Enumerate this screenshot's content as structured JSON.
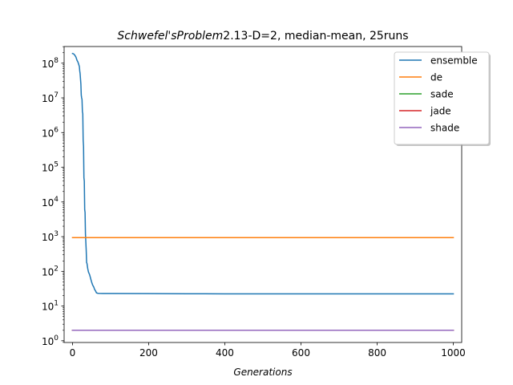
{
  "chart_data": {
    "type": "line",
    "title_italic": "Schwefel'sProblem",
    "title_rest": "2.13-D=2, median-mean, 25runs",
    "xlabel": "Generations",
    "ylabel": "",
    "xlim": [
      -22,
      1022
    ],
    "ylim_log10": [
      -0.05,
      8.48
    ],
    "yscale": "log",
    "x_ticks": [
      0,
      200,
      400,
      600,
      800,
      1000
    ],
    "x_tick_labels": [
      "0",
      "200",
      "400",
      "600",
      "800",
      "1000"
    ],
    "y_tick_exponents": [
      0,
      1,
      2,
      3,
      4,
      5,
      6,
      7,
      8
    ],
    "y_tick_labels": [
      "10",
      "10",
      "10",
      "10",
      "10",
      "10",
      "10",
      "10",
      "10"
    ],
    "y_tick_sups": [
      "0",
      "1",
      "2",
      "3",
      "4",
      "5",
      "6",
      "7",
      "8"
    ],
    "grid": false,
    "legend_position": "top-right",
    "series": [
      {
        "name": "ensemble",
        "color": "#1f77b4",
        "points": [
          [
            0,
            190000000
          ],
          [
            3,
            185000000
          ],
          [
            6,
            170000000
          ],
          [
            9,
            150000000
          ],
          [
            12,
            120000000
          ],
          [
            14,
            110000000
          ],
          [
            16,
            95000000
          ],
          [
            18,
            80000000
          ],
          [
            19,
            60000000
          ],
          [
            20,
            50000000
          ],
          [
            21,
            35000000
          ],
          [
            22,
            25000000
          ],
          [
            23,
            12000000
          ],
          [
            24,
            10000000
          ],
          [
            25,
            9000000
          ],
          [
            26,
            4000000
          ],
          [
            27,
            3500000
          ],
          [
            28,
            600000
          ],
          [
            29,
            400000
          ],
          [
            30,
            50000
          ],
          [
            31,
            40000
          ],
          [
            32,
            6000
          ],
          [
            33,
            5000
          ],
          [
            34,
            1200
          ],
          [
            35,
            700
          ],
          [
            36,
            400
          ],
          [
            37,
            180
          ],
          [
            38,
            170
          ],
          [
            40,
            120
          ],
          [
            42,
            95
          ],
          [
            45,
            80
          ],
          [
            48,
            60
          ],
          [
            50,
            50
          ],
          [
            53,
            40
          ],
          [
            56,
            35
          ],
          [
            58,
            30
          ],
          [
            60,
            28
          ],
          [
            63,
            24
          ],
          [
            66,
            23.4
          ],
          [
            70,
            23.2
          ],
          [
            80,
            23.1
          ],
          [
            100,
            23
          ],
          [
            200,
            22.9
          ],
          [
            300,
            22.6
          ],
          [
            400,
            22.5
          ],
          [
            500,
            22.5
          ],
          [
            600,
            22.5
          ],
          [
            700,
            22.5
          ],
          [
            800,
            22.5
          ],
          [
            900,
            22.5
          ],
          [
            1000,
            22.5
          ]
        ]
      },
      {
        "name": "de",
        "color": "#ff7f0e",
        "points": [
          [
            0,
            940
          ],
          [
            1000,
            940
          ]
        ]
      },
      {
        "name": "sade",
        "color": "#2ca02c",
        "points": [
          [
            0,
            2
          ],
          [
            1000,
            2
          ]
        ]
      },
      {
        "name": "jade",
        "color": "#d62728",
        "points": [
          [
            0,
            2
          ],
          [
            1000,
            2
          ]
        ]
      },
      {
        "name": "shade",
        "color": "#9467bd",
        "points": [
          [
            0,
            2
          ],
          [
            1000,
            2
          ]
        ]
      }
    ]
  }
}
